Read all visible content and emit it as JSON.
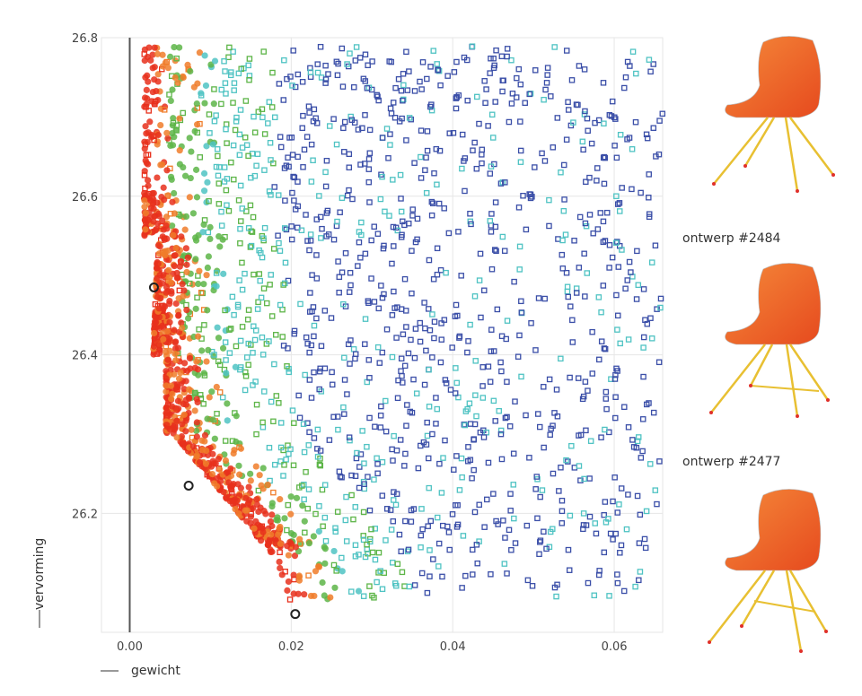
{
  "chart_data": {
    "type": "scatter",
    "xlabel": "gewicht",
    "ylabel": "vervorming",
    "xlim": [
      -0.0035,
      0.066
    ],
    "ylim": [
      26.05,
      26.8
    ],
    "x_ticks": [
      0.0,
      0.02,
      0.04,
      0.06
    ],
    "y_ticks": [
      26.2,
      26.4,
      26.6,
      26.8
    ],
    "x_tick_labels": [
      "0.00",
      "0.02",
      "0.04",
      "0.06"
    ],
    "y_tick_labels": [
      "26.2",
      "26.4",
      "26.6",
      "26.8"
    ],
    "grid": true,
    "highlighted_points": [
      {
        "x": 0.003,
        "y": 26.485
      },
      {
        "x": 0.0073,
        "y": 26.235
      },
      {
        "x": 0.0205,
        "y": 26.073
      }
    ],
    "colors": {
      "grid": "#e6e6e6",
      "zero_line": "#555555",
      "red": "#e8301c",
      "orange": "#f07d2a",
      "green": "#5db548",
      "teal": "#4fc3c3",
      "blue": "#3b4fa8"
    }
  },
  "designs": [
    {
      "label": "ontwerp #2484"
    },
    {
      "label": "ontwerp #2477"
    }
  ],
  "chair_icons": [
    "chair-design-top",
    "chair-design-middle",
    "chair-design-bottom"
  ]
}
